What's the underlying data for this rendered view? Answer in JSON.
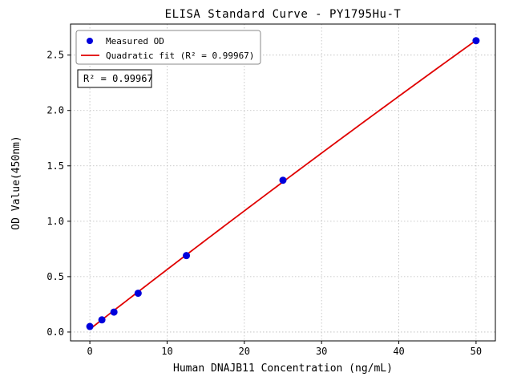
{
  "chart_data": {
    "type": "scatter",
    "title": "ELISA Standard Curve - PY1795Hu-T",
    "xlabel": "Human DNAJB11 Concentration (ng/mL)",
    "ylabel": "OD Value(450nm)",
    "xlim": [
      -2.5,
      52.5
    ],
    "ylim": [
      -0.08,
      2.78
    ],
    "xticks": [
      0,
      10,
      20,
      30,
      40,
      50
    ],
    "yticks": [
      0.0,
      0.5,
      1.0,
      1.5,
      2.0,
      2.5
    ],
    "grid": true,
    "grid_style": "dotted",
    "annotation": "R² = 0.99967",
    "colors": {
      "points": "#0000dc",
      "fit_line": "#e00000",
      "grid": "#bbbbbb",
      "axes": "#000000",
      "legend_border": "#888888",
      "annotation_border": "#000000"
    },
    "legend": {
      "position": "upper-left",
      "entries": [
        {
          "label": "Measured OD",
          "type": "marker",
          "color": "#0000dc"
        },
        {
          "label": "Quadratic fit (R² = 0.99967)",
          "type": "line",
          "color": "#e00000"
        }
      ]
    },
    "series": [
      {
        "name": "Measured OD",
        "type": "scatter",
        "color": "#0000dc",
        "points": [
          [
            0,
            0.05
          ],
          [
            1.56,
            0.11
          ],
          [
            3.12,
            0.18
          ],
          [
            6.25,
            0.35
          ],
          [
            12.5,
            0.69
          ],
          [
            25,
            1.37
          ],
          [
            50,
            2.63
          ]
        ]
      },
      {
        "name": "Quadratic fit",
        "type": "quadratic-fit",
        "color": "#e00000",
        "r_squared": "0.99967",
        "x_range": [
          0,
          50
        ]
      }
    ]
  }
}
